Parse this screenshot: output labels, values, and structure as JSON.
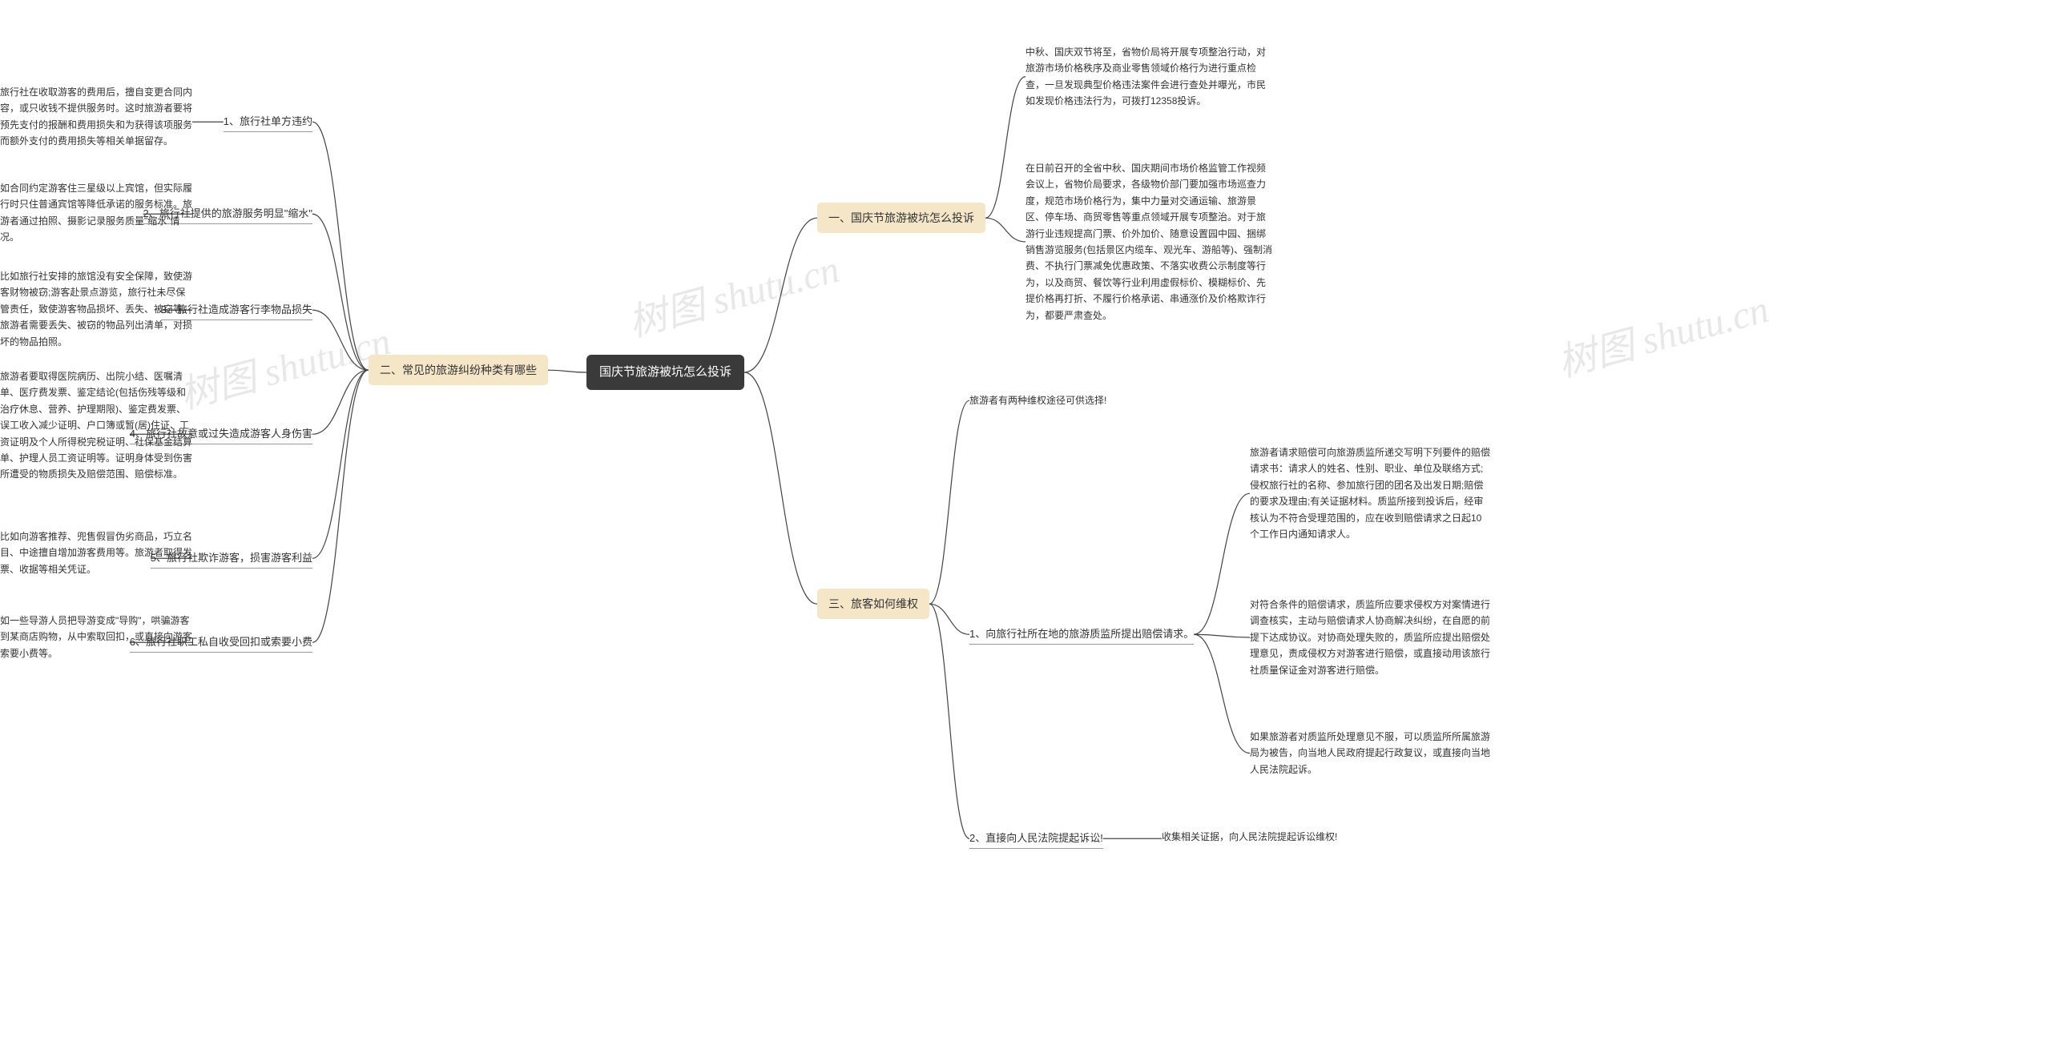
{
  "watermark": "树图 shutu.cn",
  "colors": {
    "root_bg": "#3a3a3a",
    "root_fg": "#ffffff",
    "branch_bg": "#f5e6c8",
    "branch_fg": "#333333",
    "text": "#333333",
    "line": "#444444",
    "watermark": "#e8e8e8",
    "page_bg": "#ffffff"
  },
  "root": "国庆节旅游被坑怎么投诉",
  "right": {
    "b1": {
      "title": "一、国庆节旅游被坑怎么投诉",
      "leaf1": "中秋、国庆双节将至，省物价局将开展专项整治行动，对旅游市场价格秩序及商业零售领域价格行为进行重点检查，一旦发现典型价格违法案件会进行查处并曝光，市民如发现价格违法行为，可拨打12358投诉。",
      "leaf2": "在日前召开的全省中秋、国庆期间市场价格监管工作视频会议上，省物价局要求，各级物价部门要加强市场巡查力度，规范市场价格行为，集中力量对交通运输、旅游景区、停车场、商贸零售等重点领域开展专项整治。对于旅游行业违规提高门票、价外加价、随意设置园中园、捆绑销售游览服务(包括景区内缆车、观光车、游船等)、强制消费、不执行门票减免优惠政策、不落实收费公示制度等行为，以及商贸、餐饮等行业利用虚假标价、模糊标价、先提价格再打折、不履行价格承诺、串通涨价及价格欺诈行为，都要严肃查处。"
    },
    "b3": {
      "title": "三、旅客如何维权",
      "intro": "旅游者有两种维权途径可供选择!",
      "s1": {
        "title": "1、向旅行社所在地的旅游质监所提出赔偿请求。",
        "leaf1": "旅游者请求赔偿可向旅游质监所递交写明下列要件的赔偿请求书：请求人的姓名、性别、职业、单位及联络方式;侵权旅行社的名称、参加旅行团的团名及出发日期;赔偿的要求及理由;有关证据材料。质监所接到投诉后，经审核认为不符合受理范围的，应在收到赔偿请求之日起10个工作日内通知请求人。",
        "leaf2": "对符合条件的赔偿请求，质监所应要求侵权方对案情进行调查核实，主动与赔偿请求人协商解决纠纷，在自愿的前提下达成协议。对协商处理失败的，质监所应提出赔偿处理意见，责成侵权方对游客进行赔偿，或直接动用该旅行社质量保证金对游客进行赔偿。",
        "leaf3": "如果旅游者对质监所处理意见不服，可以质监所所属旅游局为被告，向当地人民政府提起行政复议，或直接向当地人民法院起诉。"
      },
      "s2": {
        "title": "2、直接向人民法院提起诉讼!",
        "leaf": "收集相关证据，向人民法院提起诉讼维权!"
      }
    }
  },
  "left": {
    "b2": {
      "title": "二、常见的旅游纠纷种类有哪些",
      "s1": {
        "title": "1、旅行社单方违约",
        "leaf": "旅行社在收取游客的费用后，擅自变更合同内容，或只收钱不提供服务时。这时旅游者要将预先支付的报酬和费用损失和为获得该项服务而额外支付的费用损失等相关单据留存。"
      },
      "s2": {
        "title": "2、旅行社提供的旅游服务明显\"缩水\"",
        "leaf": "如合同约定游客住三星级以上宾馆，但实际履行时只住普通宾馆等降低承诺的服务标准。旅游者通过拍照、摄影记录服务质量\"缩水\"情况。"
      },
      "s3": {
        "title": "3、旅行社造成游客行李物品损失",
        "leaf": "比如旅行社安排的旅馆没有安全保障，致使游客财物被窃;游客赴景点游览，旅行社未尽保管责任，致使游客物品损坏、丢失、被窃等。旅游者需要丢失、被窃的物品列出清单，对损坏的物品拍照。"
      },
      "s4": {
        "title": "4、旅行社故意或过失造成游客人身伤害",
        "leaf": "旅游者要取得医院病历、出院小结、医嘱清单、医疗费发票、鉴定结论(包括伤残等级和治疗休息、营养、护理期限)、鉴定费发票、误工收入减少证明、户口簿或暂(居)住证、工资证明及个人所得税完税证明、社保基金结算单、护理人员工资证明等。证明身体受到伤害所遭受的物质损失及赔偿范围、赔偿标准。"
      },
      "s5": {
        "title": "5、旅行社欺诈游客，损害游客利益",
        "leaf": "比如向游客推荐、兜售假冒伪劣商品，巧立名目、中途擅自增加游客费用等。旅游者取得发票、收据等相关凭证。"
      },
      "s6": {
        "title": "6、旅行社职工私自收受回扣或索要小费",
        "leaf": "如一些导游人员把导游变成\"导购\"，哄骗游客到某商店购物，从中索取回扣，或直接向游客索要小费等。"
      }
    }
  }
}
